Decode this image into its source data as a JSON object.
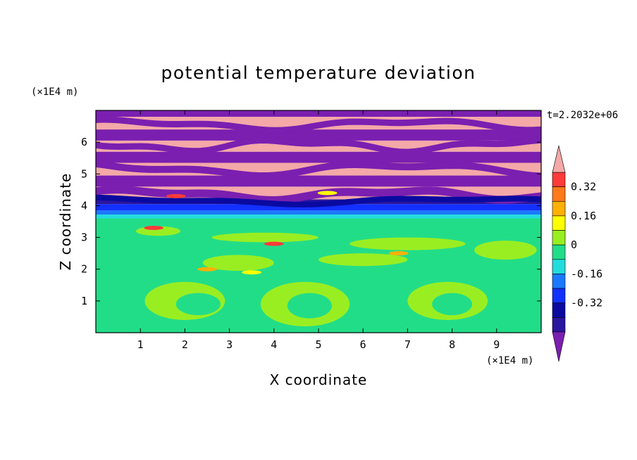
{
  "chart_data": {
    "type": "heatmap",
    "title": "potential temperature deviation",
    "xlabel": "X coordinate",
    "ylabel": "Z coordinate",
    "x_unit": "(×1E4 m)",
    "y_unit": "(×1E4 m)",
    "time_label": "t=2.2032e+06",
    "xlim": [
      0,
      10
    ],
    "ylim": [
      0,
      7
    ],
    "x_ticks": [
      "1",
      "2",
      "3",
      "4",
      "5",
      "6",
      "7",
      "8",
      "9"
    ],
    "y_ticks": [
      "1",
      "2",
      "3",
      "4",
      "5",
      "6"
    ],
    "colorbar": {
      "tick_labels": [
        "0.32",
        "0.16",
        "0",
        "-0.16",
        "-0.32"
      ],
      "tick_values": [
        0.32,
        0.16,
        0,
        -0.16,
        -0.32
      ],
      "levels": [
        {
          "max": 0.4,
          "color": "#ff3a3a"
        },
        {
          "max": 0.32,
          "color": "#ff7a1a"
        },
        {
          "max": 0.24,
          "color": "#ffb000"
        },
        {
          "max": 0.16,
          "color": "#ffff00"
        },
        {
          "max": 0.08,
          "color": "#99ee22"
        },
        {
          "max": 0.0,
          "color": "#22dd88"
        },
        {
          "max": -0.08,
          "color": "#22dddd"
        },
        {
          "max": -0.16,
          "color": "#1a7aff"
        },
        {
          "max": -0.24,
          "color": "#1230ff"
        },
        {
          "max": -0.32,
          "color": "#0a0aa0"
        },
        {
          "max": -0.4,
          "color": "#2a16a0"
        }
      ],
      "over_color": "#f4a8a8",
      "under_color": "#7a1fb0"
    },
    "colors": {
      "pink": "#f4a8a8",
      "purple": "#7a1fb0",
      "navy": "#2a16a0",
      "darkblue": "#0a0aa0",
      "blue": "#1230ff",
      "midblue": "#1a7aff",
      "cyan": "#22dddd",
      "green": "#22dd88",
      "lime": "#99ee22",
      "yellow": "#ffff00",
      "orange": "#ffb000",
      "red": "#ff3a3a"
    }
  }
}
